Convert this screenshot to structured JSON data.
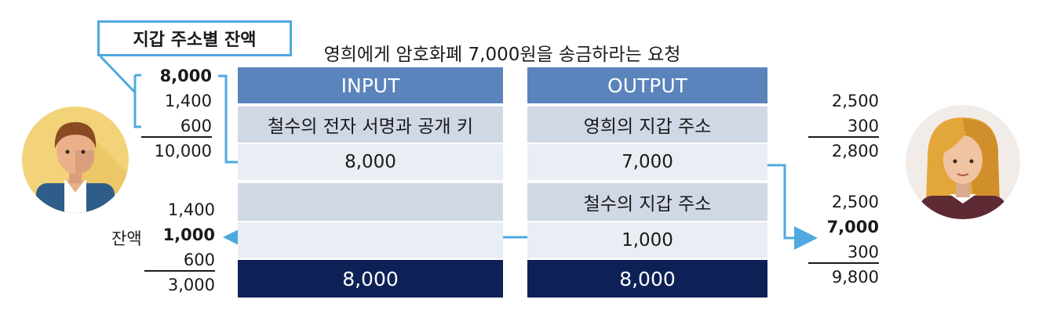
{
  "wallet_label": "지갑 주소별 잔액",
  "title": "영희에게 암호화폐 7,000원을 송금하라는 요청",
  "input": {
    "header": "INPUT",
    "rows": [
      "철수의 전자 서명과 공개 키",
      "8,000",
      "",
      ""
    ],
    "total": "8,000"
  },
  "output": {
    "header": "OUTPUT",
    "rows": [
      "영희의 지갑 주소",
      "7,000",
      "철수의 지갑 주소",
      "1,000"
    ],
    "total": "8,000"
  },
  "left_top": [
    "8,000",
    "1,400",
    "600",
    "10,000"
  ],
  "left_bottom": [
    "1,400",
    "1,000",
    "600",
    "3,000"
  ],
  "balance_label": "잔액",
  "right_top": [
    "2,500",
    "300",
    "2,800"
  ],
  "right_bottom": [
    "2,500",
    "7,000",
    "300",
    "9,800"
  ],
  "colors": {
    "header": "#5b83bc",
    "total": "#0e2157",
    "arrow": "#4fa8df"
  },
  "icons": [
    "man-avatar-icon",
    "woman-avatar-icon"
  ]
}
